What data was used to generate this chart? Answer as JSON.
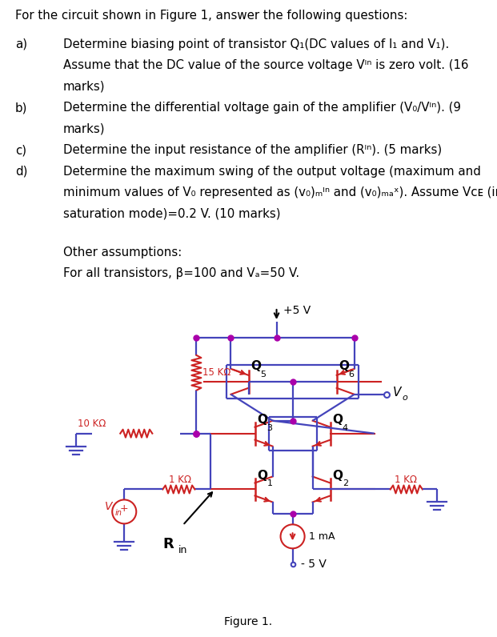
{
  "wire_color": "#4444bb",
  "comp_color": "#cc2222",
  "node_color": "#aa00aa",
  "text_black": "#000000",
  "bg_color": "#ffffff",
  "figure_label": "Figure 1.",
  "title": "For the circuit shown in Figure 1, answer the following questions:",
  "lines": [
    [
      "a)",
      "Determine biasing point of transistor Q₁(DC values of I₁ and V₁)."
    ],
    [
      "",
      "Assume that the DC value of the source voltage Vᴵⁿ is zero volt. (16"
    ],
    [
      "",
      "marks)"
    ],
    [
      "b)",
      "Determine the differential voltage gain of the amplifier (V₀/Vᴵⁿ). (9"
    ],
    [
      "",
      "marks)"
    ],
    [
      "c)",
      "Determine the input resistance of the amplifier (Rᴵⁿ). (5 marks)"
    ],
    [
      "d)",
      "Determine the maximum swing of the output voltage (maximum and"
    ],
    [
      "",
      "minimum values of V₀ represented as (v₀)ₘᴵⁿ and (v₀)ₘₐˣ). Assume Vᴄᴇ (in"
    ],
    [
      "",
      "saturation mode)=0.2 V. (10 marks)"
    ]
  ],
  "assump1": "Other assumptions:",
  "assump2": "For all transistors, β=100 and Vₐ=50 V."
}
